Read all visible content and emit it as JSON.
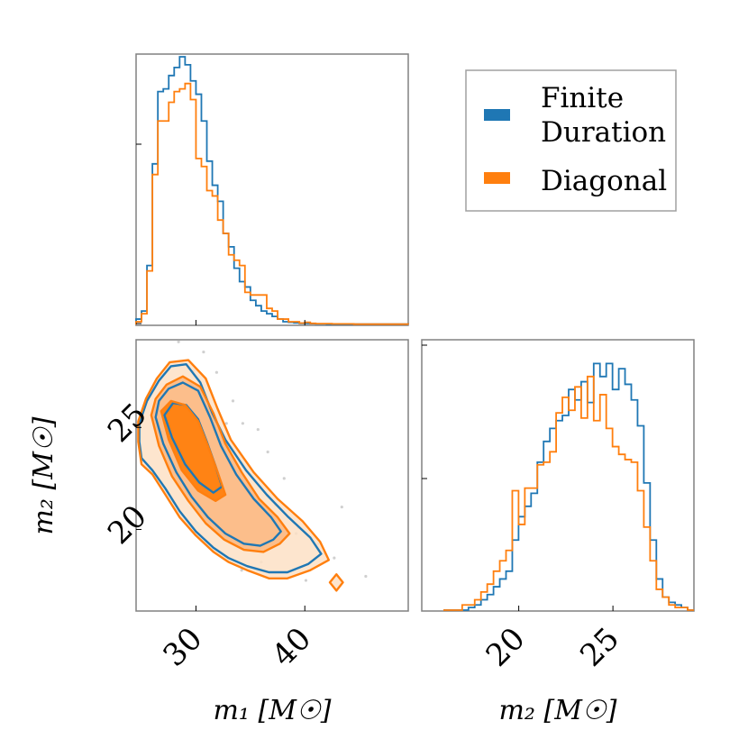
{
  "colors": {
    "finite_duration": "#1f77b4",
    "diagonal": "#ff7f0e",
    "diagonal_fill_outer": "#fde0c6",
    "diagonal_fill_mid": "#fbb77f",
    "diagonal_fill_inner": "#ff7f0e",
    "frame": "#808080",
    "scatter": "#d0d0d0"
  },
  "chart_data": {
    "type": "corner",
    "parameters": [
      "m1",
      "m2"
    ],
    "legend": {
      "position": "top-right",
      "entries": [
        {
          "key": "finite_duration",
          "line1": "Finite",
          "line2": "Duration"
        },
        {
          "key": "diagonal",
          "line1": "Diagonal",
          "line2": ""
        }
      ]
    },
    "m1_hist": {
      "range": [
        24.5,
        49.5
      ],
      "bins": 50,
      "finite_duration": [
        0.02,
        0.05,
        0.22,
        0.6,
        0.87,
        0.88,
        0.93,
        0.96,
        1.0,
        0.97,
        0.91,
        0.86,
        0.76,
        0.61,
        0.52,
        0.46,
        0.34,
        0.29,
        0.21,
        0.16,
        0.14,
        0.09,
        0.07,
        0.05,
        0.04,
        0.03,
        0.02,
        0.01,
        0.008,
        0.006,
        0.004,
        0.004,
        0.003,
        0.002,
        0.002,
        0.001,
        0.001,
        0.001,
        0.001,
        0.001,
        0.001,
        0.001,
        0.001,
        0.001,
        0.001,
        0.001,
        0.001,
        0.001,
        0.001,
        0.001
      ],
      "diagonal": [
        0.01,
        0.04,
        0.2,
        0.56,
        0.76,
        0.76,
        0.83,
        0.87,
        0.88,
        0.9,
        0.84,
        0.62,
        0.59,
        0.5,
        0.48,
        0.39,
        0.34,
        0.26,
        0.24,
        0.22,
        0.12,
        0.11,
        0.11,
        0.11,
        0.06,
        0.05,
        0.02,
        0.02,
        0.01,
        0.01,
        0.005,
        0.008,
        0.004,
        0.003,
        0.003,
        0.003,
        0.002,
        0.002,
        0.002,
        0.002,
        0.001,
        0.001,
        0.001,
        0.001,
        0.001,
        0.001,
        0.001,
        0.001,
        0.001,
        0.001
      ],
      "xticks": [
        30,
        40
      ],
      "xlabel": "m₁ [M☉]"
    },
    "m2_hist": {
      "range": [
        16.0,
        29.3
      ],
      "bins": 40,
      "finite_duration": [
        0.0,
        0.0,
        0.0,
        0.0,
        0.01,
        0.02,
        0.04,
        0.06,
        0.09,
        0.12,
        0.15,
        0.27,
        0.36,
        0.4,
        0.45,
        0.57,
        0.65,
        0.7,
        0.73,
        0.75,
        0.85,
        0.81,
        0.88,
        0.8,
        0.95,
        0.9,
        0.95,
        0.85,
        0.93,
        0.87,
        0.81,
        0.71,
        0.49,
        0.27,
        0.12,
        0.05,
        0.03,
        0.02,
        0.01,
        0.0
      ],
      "diagonal": [
        0.0,
        0.0,
        0.0,
        0.02,
        0.02,
        0.04,
        0.07,
        0.1,
        0.15,
        0.19,
        0.23,
        0.46,
        0.33,
        0.47,
        0.47,
        0.56,
        0.57,
        0.61,
        0.76,
        0.82,
        0.77,
        0.86,
        0.74,
        0.9,
        0.73,
        0.83,
        0.7,
        0.63,
        0.6,
        0.58,
        0.57,
        0.46,
        0.32,
        0.19,
        0.08,
        0.05,
        0.02,
        0.01,
        0.01,
        0.0
      ],
      "xticks": [
        20,
        25
      ],
      "xlabel": "m₂ [M☉]"
    },
    "joint": {
      "xrange": [
        24.5,
        49.5
      ],
      "yrange": [
        16.0,
        29.3
      ],
      "xticks": [
        30,
        40
      ],
      "yticks": [
        20,
        25
      ],
      "ylabel": "m₂ [M☉]",
      "contours": [
        {
          "level": "outer",
          "finite_duration": [
            [
              25,
              23.5
            ],
            [
              26,
              22.9
            ],
            [
              27.2,
              22
            ],
            [
              28.5,
              20.9
            ],
            [
              30,
              19.9
            ],
            [
              31.6,
              19.1
            ],
            [
              33,
              18.6
            ],
            [
              34.7,
              18.2
            ],
            [
              36.7,
              17.9
            ],
            [
              38.4,
              17.9
            ],
            [
              40.3,
              18.3
            ],
            [
              41.5,
              18.8
            ],
            [
              40.5,
              19.6
            ],
            [
              38.5,
              20.6
            ],
            [
              36.5,
              21.7
            ],
            [
              34.6,
              22.9
            ],
            [
              32.7,
              24.4
            ],
            [
              31.5,
              25.7
            ],
            [
              30.4,
              27.2
            ],
            [
              29.1,
              28.1
            ],
            [
              27.7,
              28
            ],
            [
              26.6,
              27.3
            ],
            [
              25.5,
              26.3
            ],
            [
              24.8,
              25.2
            ],
            [
              24.8,
              24.3
            ]
          ],
          "diagonal": [
            [
              25,
              23.2
            ],
            [
              26,
              22.7
            ],
            [
              27.2,
              21.7
            ],
            [
              28.5,
              20.6
            ],
            [
              30,
              19.7
            ],
            [
              31.6,
              18.9
            ],
            [
              33,
              18.4
            ],
            [
              34.7,
              18.0
            ],
            [
              36.7,
              17.6
            ],
            [
              38.4,
              17.6
            ],
            [
              40.5,
              18.0
            ],
            [
              42.2,
              18.5
            ],
            [
              41.4,
              19.4
            ],
            [
              39.8,
              20.4
            ],
            [
              37.5,
              21.5
            ],
            [
              35.3,
              22.8
            ],
            [
              33.2,
              24.4
            ],
            [
              32,
              25.9
            ],
            [
              30.9,
              27.4
            ],
            [
              29.3,
              28.3
            ],
            [
              27.6,
              28.2
            ],
            [
              26.4,
              27.4
            ],
            [
              25.4,
              26.4
            ],
            [
              24.7,
              25.3
            ],
            [
              24.7,
              24.3
            ]
          ]
        },
        {
          "level": "mid",
          "finite_duration": [
            [
              26.3,
              25.5
            ],
            [
              27,
              24.2
            ],
            [
              28.2,
              22.8
            ],
            [
              29.6,
              21.6
            ],
            [
              31.1,
              20.6
            ],
            [
              32.7,
              19.8
            ],
            [
              34.4,
              19.3
            ],
            [
              35.9,
              19.2
            ],
            [
              37.1,
              19.5
            ],
            [
              37.8,
              19.9
            ],
            [
              36.9,
              20.6
            ],
            [
              35.3,
              21.5
            ],
            [
              33.7,
              22.7
            ],
            [
              32.3,
              24.1
            ],
            [
              31.3,
              25.5
            ],
            [
              30.2,
              26.8
            ],
            [
              28.8,
              27.2
            ],
            [
              27.5,
              26.9
            ],
            [
              26.6,
              26.3
            ]
          ],
          "diagonal": [
            [
              25.9,
              25.6
            ],
            [
              26.6,
              24.1
            ],
            [
              27.8,
              22.6
            ],
            [
              29.3,
              21.4
            ],
            [
              30.9,
              20.3
            ],
            [
              32.6,
              19.5
            ],
            [
              34.4,
              19.0
            ],
            [
              36.2,
              18.9
            ],
            [
              37.7,
              19.3
            ],
            [
              38.6,
              19.8
            ],
            [
              37.5,
              20.6
            ],
            [
              35.8,
              21.5
            ],
            [
              34.2,
              22.8
            ],
            [
              32.7,
              24.2
            ],
            [
              31.6,
              25.7
            ],
            [
              30.4,
              27.0
            ],
            [
              28.8,
              27.5
            ],
            [
              27.3,
              27.1
            ],
            [
              26.3,
              26.4
            ]
          ]
        },
        {
          "level": "inner",
          "finite_duration": [
            [
              27.1,
              25.6
            ],
            [
              27.8,
              24.5
            ],
            [
              29.0,
              23.2
            ],
            [
              30.3,
              22.3
            ],
            [
              31.6,
              21.8
            ],
            [
              32.4,
              22.1
            ],
            [
              31.8,
              23.1
            ],
            [
              31.0,
              24.3
            ],
            [
              30.2,
              25.4
            ],
            [
              29.1,
              26.1
            ],
            [
              27.9,
              26.2
            ]
          ],
          "diagonal": [
            [
              26.8,
              25.8
            ],
            [
              27.5,
              24.4
            ],
            [
              28.7,
              22.9
            ],
            [
              30.2,
              21.9
            ],
            [
              31.8,
              21.4
            ],
            [
              32.7,
              21.7
            ],
            [
              32.0,
              22.8
            ],
            [
              31.1,
              24.1
            ],
            [
              30.2,
              25.3
            ],
            [
              29.0,
              26.1
            ],
            [
              27.7,
              26.3
            ]
          ]
        },
        {
          "level": "island",
          "finite_duration": [],
          "diagonal": [
            [
              42.3,
              17.4
            ],
            [
              42.9,
              17.0
            ],
            [
              43.5,
              17.4
            ],
            [
              42.9,
              17.8
            ]
          ]
        }
      ],
      "scatter": [
        [
          28.4,
          29.2
        ],
        [
          30.7,
          28.7
        ],
        [
          31.9,
          27.7
        ],
        [
          33.4,
          26.3
        ],
        [
          34.3,
          25.2
        ],
        [
          36.6,
          23.8
        ],
        [
          38.1,
          22.5
        ],
        [
          39.4,
          20.1
        ],
        [
          41.2,
          19.3
        ],
        [
          43.4,
          21.1
        ],
        [
          45.6,
          17.7
        ],
        [
          40.1,
          17.5
        ],
        [
          36.0,
          18.4
        ],
        [
          34.2,
          18.0
        ],
        [
          31.7,
          20.3
        ],
        [
          29.4,
          22.7
        ],
        [
          37.3,
          21.2
        ],
        [
          42.7,
          18.6
        ],
        [
          35.7,
          24.9
        ],
        [
          29.8,
          27.8
        ],
        [
          32.8,
          25.2
        ],
        [
          39.2,
          19.8
        ]
      ]
    }
  }
}
